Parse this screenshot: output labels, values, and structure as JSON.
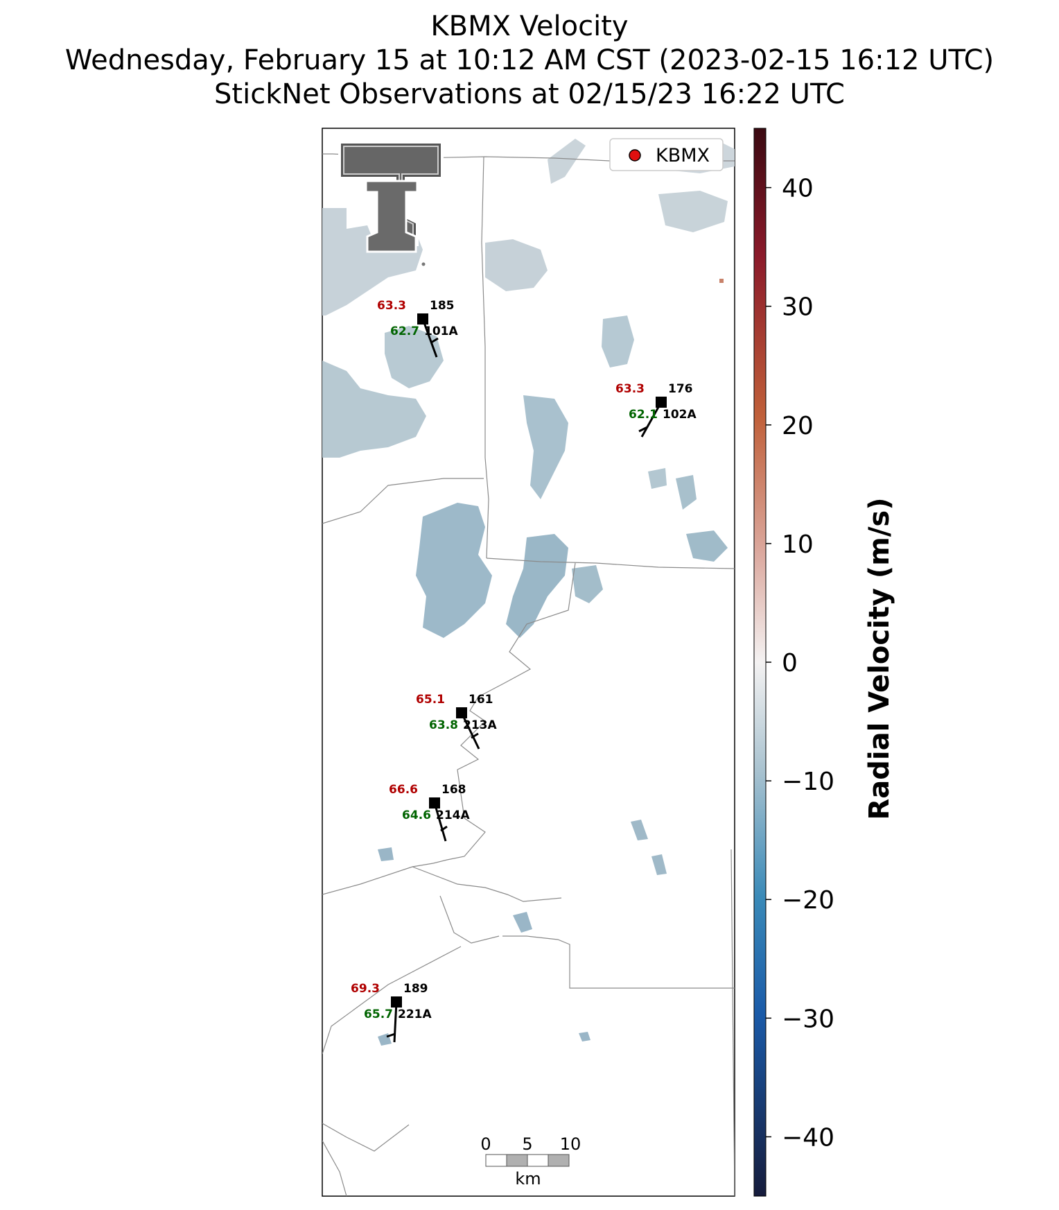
{
  "title": {
    "line1": "KBMX Velocity",
    "line2": "Wednesday, February 15 at 10:12 AM CST (2023-02-15 16:12 UTC)",
    "line3": "StickNet Observations at 02/15/23 16:22 UTC"
  },
  "legend": {
    "label": "KBMX",
    "marker_color": "#e01010"
  },
  "colorbar": {
    "label": "Radial Velocity (m/s)",
    "range": [
      -45,
      45
    ],
    "ticks": [
      40,
      30,
      20,
      10,
      0,
      -10,
      -20,
      -30,
      -40
    ],
    "tick_labels": [
      "40",
      "30",
      "20",
      "10",
      "0",
      "−10",
      "−20",
      "−30",
      "−40"
    ]
  },
  "stations": [
    {
      "id": "101A",
      "temp": "63.3",
      "dew": "62.7",
      "pressure": "185"
    },
    {
      "id": "102A",
      "temp": "63.3",
      "dew": "62.1",
      "pressure": "176"
    },
    {
      "id": "213A",
      "temp": "65.1",
      "dew": "63.8",
      "pressure": "161"
    },
    {
      "id": "214A",
      "temp": "66.6",
      "dew": "64.6",
      "pressure": "168"
    },
    {
      "id": "221A",
      "temp": "69.3",
      "dew": "65.7",
      "pressure": "189"
    }
  ],
  "scale_bar": {
    "labels": [
      "0",
      "5",
      "10"
    ],
    "unit": "km"
  },
  "colors": {
    "temp": "#b00000",
    "dew": "#006400",
    "radar_light": "#c9d3d9",
    "radar_mid": "#a9c0cc",
    "radar_dark": "#8aaec0"
  }
}
